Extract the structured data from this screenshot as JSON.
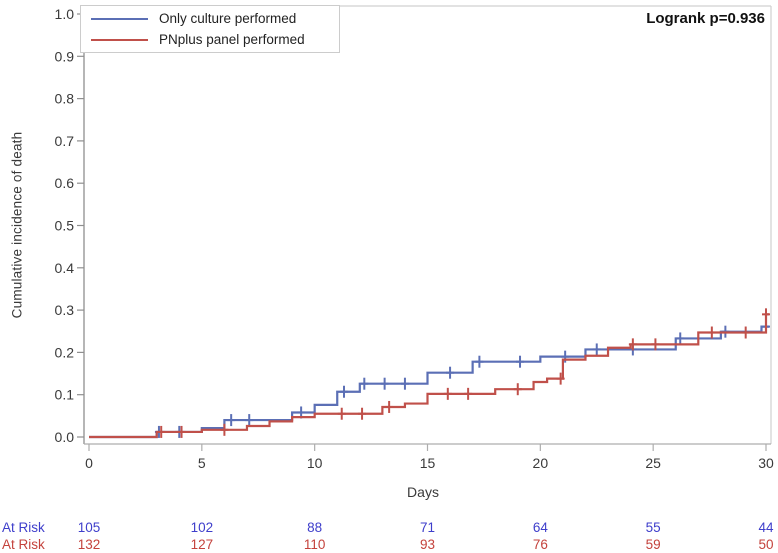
{
  "figure": {
    "annotation": "Logrank p=0.936",
    "x_axis": {
      "label": "Days",
      "ticks": [
        0,
        5,
        10,
        15,
        20,
        25,
        30
      ]
    },
    "y_axis": {
      "label": "Cumulative incidence of death",
      "tick_labels": [
        "0.0",
        "0.1",
        "0.2",
        "0.3",
        "0.4",
        "0.5",
        "0.6",
        "0.7",
        "0.8",
        "0.9",
        "1.0"
      ]
    }
  },
  "chart_data": {
    "type": "line",
    "subtype": "step-cumulative-incidence",
    "title": "",
    "annotation": "Logrank p=0.936",
    "xlabel": "Days",
    "ylabel": "Cumulative incidence of death",
    "xlim": [
      0,
      30
    ],
    "ylim": [
      0.0,
      1.0
    ],
    "x_ticks": [
      0,
      5,
      10,
      15,
      20,
      25,
      30
    ],
    "y_tick_step": 0.1,
    "grid": false,
    "legend_position": "top-left",
    "series": [
      {
        "name": "Only culture performed",
        "color": "#5b6fb5",
        "steps": [
          [
            0,
            0.0
          ],
          [
            3,
            0.012
          ],
          [
            5,
            0.021
          ],
          [
            6,
            0.04
          ],
          [
            9,
            0.058
          ],
          [
            10,
            0.076
          ],
          [
            11,
            0.107
          ],
          [
            12,
            0.126
          ],
          [
            15,
            0.152
          ],
          [
            17,
            0.178
          ],
          [
            20,
            0.19
          ],
          [
            22,
            0.207
          ],
          [
            26,
            0.233
          ],
          [
            28,
            0.249
          ],
          [
            29.8,
            0.261
          ]
        ],
        "censors": [
          [
            3.1,
            0.012
          ],
          [
            4.0,
            0.012
          ],
          [
            6.3,
            0.04
          ],
          [
            7.1,
            0.04
          ],
          [
            9.4,
            0.058
          ],
          [
            11.3,
            0.107
          ],
          [
            12.2,
            0.126
          ],
          [
            13.1,
            0.126
          ],
          [
            14.0,
            0.126
          ],
          [
            16.0,
            0.152
          ],
          [
            17.3,
            0.178
          ],
          [
            19.1,
            0.178
          ],
          [
            21.1,
            0.19
          ],
          [
            22.5,
            0.207
          ],
          [
            24.1,
            0.207
          ],
          [
            26.2,
            0.233
          ],
          [
            28.2,
            0.249
          ],
          [
            30,
            0.261
          ]
        ]
      },
      {
        "name": "PNplus panel performed",
        "color": "#c0504a",
        "steps": [
          [
            0,
            0.0
          ],
          [
            3,
            0.012
          ],
          [
            5,
            0.017
          ],
          [
            7,
            0.026
          ],
          [
            8,
            0.037
          ],
          [
            9,
            0.047
          ],
          [
            10,
            0.055
          ],
          [
            13,
            0.071
          ],
          [
            14,
            0.079
          ],
          [
            15,
            0.102
          ],
          [
            18,
            0.113
          ],
          [
            19.7,
            0.13
          ],
          [
            20.3,
            0.138
          ],
          [
            21,
            0.183
          ],
          [
            22,
            0.192
          ],
          [
            23,
            0.211
          ],
          [
            24,
            0.219
          ],
          [
            27,
            0.247
          ],
          [
            30,
            0.29
          ]
        ],
        "censors": [
          [
            3.2,
            0.012
          ],
          [
            4.1,
            0.012
          ],
          [
            6.0,
            0.017
          ],
          [
            11.2,
            0.055
          ],
          [
            12.1,
            0.055
          ],
          [
            13.3,
            0.071
          ],
          [
            15.9,
            0.102
          ],
          [
            16.8,
            0.102
          ],
          [
            19.0,
            0.113
          ],
          [
            20.9,
            0.138
          ],
          [
            24.1,
            0.219
          ],
          [
            25.1,
            0.219
          ],
          [
            27.6,
            0.247
          ],
          [
            29.1,
            0.247
          ],
          [
            30,
            0.29
          ]
        ]
      }
    ]
  },
  "at_risk": {
    "row_label": "At Risk",
    "days": [
      0,
      5,
      10,
      15,
      20,
      25,
      30
    ],
    "rows": [
      {
        "series": "Only culture performed",
        "color": "#3e3ecb",
        "values": [
          "105",
          "102",
          "88",
          "71",
          "64",
          "55",
          "44"
        ]
      },
      {
        "series": "PNplus panel performed",
        "color": "#c4423c",
        "values": [
          "132",
          "127",
          "110",
          "93",
          "76",
          "59",
          "50"
        ]
      }
    ]
  },
  "colors": {
    "curve_blue": "#5b6fb5",
    "curve_red": "#c0504a",
    "at_risk_blue": "#3e3ecb",
    "at_risk_red": "#c4423c",
    "axis_left": "#8f8f8f",
    "axis_bottom": "#adadad",
    "frame_light": "#d0d0d0",
    "tick_label": "#3a3a3a"
  }
}
